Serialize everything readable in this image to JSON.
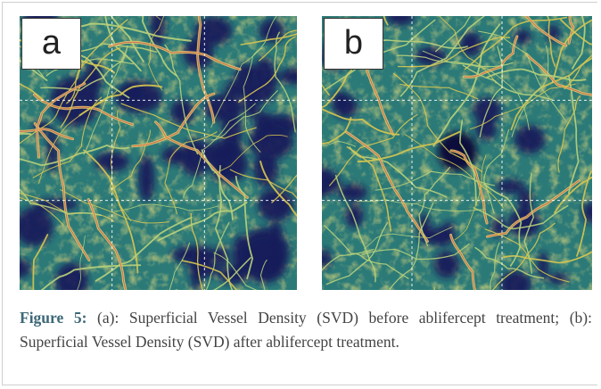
{
  "panels": [
    {
      "label": "a"
    },
    {
      "label": "b"
    }
  ],
  "caption": {
    "label": "Figure 5:",
    "text": "(a): Superficial Vessel Density (SVD) before ablifercept treatment; (b): Superficial Vessel Density (SVD) after ablifercept treatment."
  }
}
